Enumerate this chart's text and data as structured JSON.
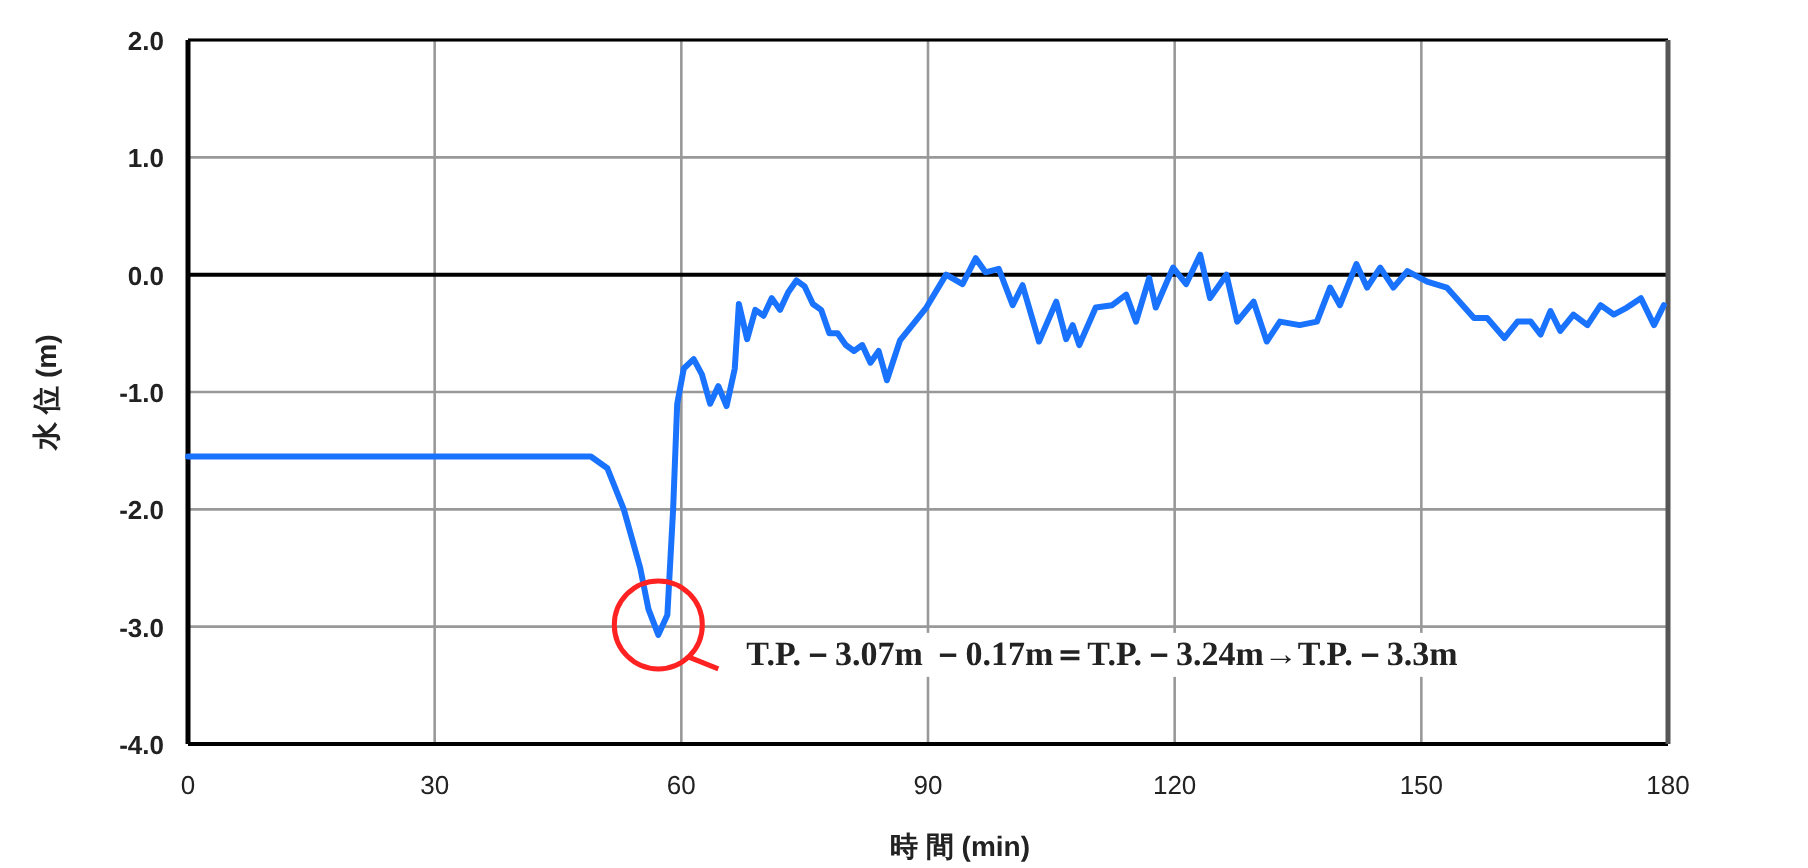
{
  "chart_data": {
    "type": "line",
    "xlabel": "時 間 (min)",
    "ylabel": "水 位 (m)",
    "xlim": [
      0,
      180
    ],
    "xticks": [
      0,
      30,
      60,
      90,
      120,
      150,
      180
    ],
    "ylim": [
      -4,
      2
    ],
    "yticks": [
      {
        "value": 2,
        "label": "2.0"
      },
      {
        "value": 1,
        "label": "1.0"
      },
      {
        "value": 0,
        "label": "0.0"
      },
      {
        "value": -1,
        "label": "-1.0"
      },
      {
        "value": -2,
        "label": "-2.0"
      },
      {
        "value": -3,
        "label": "-3.0"
      },
      {
        "value": -4,
        "label": "-4.0"
      }
    ],
    "grid": true,
    "line_style": "solid",
    "marker": "none",
    "ref_lines": [
      {
        "axis": "y",
        "value": 0,
        "color": "#000000"
      }
    ],
    "annotations": [
      {
        "text": "T.P.－3.07m －0.17m＝T.P.－3.24m→T.P.－3.3m",
        "x": 57.2,
        "y": -3.07
      }
    ],
    "series": [
      {
        "color": "#1a73ff",
        "x": [
          0,
          10,
          20,
          30,
          40,
          49,
          51,
          53,
          55,
          56,
          57.2,
          58.3,
          59,
          59.5,
          60.3,
          61.5,
          62.5,
          63.5,
          64.5,
          65.5,
          66.5,
          67,
          68,
          69,
          70,
          71,
          72,
          73,
          74,
          75,
          76,
          77,
          78,
          79,
          80,
          81,
          82,
          83,
          84,
          85,
          86.6,
          89.8,
          92.2,
          94.2,
          95.8,
          97.0,
          98.6,
          100.3,
          101.5,
          103.5,
          105.6,
          106.8,
          107.6,
          108.4,
          110.4,
          112.4,
          114.1,
          115.3,
          116.9,
          117.7,
          119.8,
          121.4,
          123.1,
          124.3,
          126.3,
          127.6,
          129.6,
          131.2,
          132.8,
          135.2,
          137.3,
          138.9,
          140.1,
          142.1,
          143.4,
          145.0,
          146.6,
          148.3,
          150.7,
          153.1,
          156.4,
          158.0,
          160.1,
          161.7,
          163.3,
          164.5,
          165.7,
          166.9,
          168.5,
          170.2,
          171.8,
          173.4,
          175.0,
          176.7,
          178.3,
          179.5
        ],
        "values": [
          -1.55,
          -1.55,
          -1.55,
          -1.55,
          -1.55,
          -1.55,
          -1.65,
          -2.0,
          -2.5,
          -2.85,
          -3.07,
          -2.9,
          -2.0,
          -1.1,
          -0.8,
          -0.72,
          -0.85,
          -1.1,
          -0.95,
          -1.12,
          -0.8,
          -0.25,
          -0.55,
          -0.3,
          -0.35,
          -0.2,
          -0.3,
          -0.15,
          -0.05,
          -0.1,
          -0.25,
          -0.3,
          -0.5,
          -0.5,
          -0.6,
          -0.65,
          -0.6,
          -0.75,
          -0.65,
          -0.9,
          -0.56,
          -0.28,
          0.0,
          -0.08,
          0.14,
          0.02,
          0.05,
          -0.26,
          -0.09,
          -0.57,
          -0.23,
          -0.55,
          -0.43,
          -0.6,
          -0.28,
          -0.26,
          -0.17,
          -0.4,
          -0.03,
          -0.28,
          0.06,
          -0.08,
          0.17,
          -0.2,
          0.0,
          -0.4,
          -0.23,
          -0.57,
          -0.4,
          -0.43,
          -0.4,
          -0.11,
          -0.26,
          0.09,
          -0.11,
          0.06,
          -0.11,
          0.03,
          -0.06,
          -0.11,
          -0.37,
          -0.37,
          -0.54,
          -0.4,
          -0.4,
          -0.51,
          -0.31,
          -0.48,
          -0.34,
          -0.43,
          -0.26,
          -0.34,
          -0.28,
          -0.2,
          -0.43,
          -0.26
        ]
      }
    ]
  }
}
